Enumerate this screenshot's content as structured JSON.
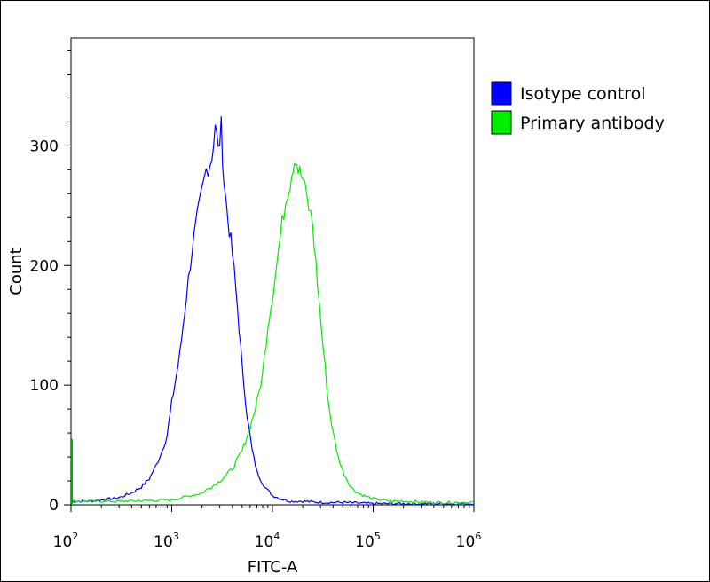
{
  "chart_data": {
    "type": "line",
    "title": "",
    "xlabel": "FITC-A",
    "ylabel": "Count",
    "xscale": "log",
    "xlim": [
      100,
      1000000
    ],
    "ylim": [
      0,
      390
    ],
    "grid": false,
    "legend_position": "top-right",
    "x_ticks": [
      {
        "base": "10",
        "exp": "2"
      },
      {
        "base": "10",
        "exp": "3"
      },
      {
        "base": "10",
        "exp": "4"
      },
      {
        "base": "10",
        "exp": "5"
      },
      {
        "base": "10",
        "exp": "6"
      }
    ],
    "y_ticks": [
      "0",
      "100",
      "200",
      "300"
    ],
    "y_tick_values": [
      0,
      100,
      200,
      300
    ],
    "series": [
      {
        "name": "Isotype control",
        "color": "#0000ff",
        "x": [
          100,
          150,
          200,
          300,
          400,
          500,
          600,
          700,
          800,
          900,
          1000,
          1200,
          1400,
          1600,
          1800,
          2000,
          2200,
          2500,
          2700,
          2900,
          3100,
          3300,
          3600,
          4000,
          4500,
          5000,
          5600,
          6300,
          7000,
          8000,
          9000,
          10000,
          12000,
          15000,
          20000,
          30000,
          50000,
          100000,
          1000000
        ],
        "y": [
          3,
          3,
          4,
          6,
          10,
          15,
          22,
          33,
          45,
          58,
          85,
          125,
          175,
          215,
          240,
          262,
          280,
          290,
          320,
          295,
          315,
          270,
          240,
          210,
          165,
          115,
          75,
          45,
          28,
          18,
          12,
          8,
          5,
          3,
          3,
          2,
          2,
          1,
          1
        ]
      },
      {
        "name": "Primary antibody",
        "color": "#00ee00",
        "x": [
          100,
          300,
          1000,
          2000,
          3000,
          4000,
          5000,
          6000,
          7000,
          8000,
          9000,
          10000,
          11000,
          12000,
          13000,
          14000,
          15000,
          16000,
          17000,
          18000,
          20000,
          22000,
          25000,
          28000,
          32000,
          36000,
          40000,
          45000,
          50000,
          60000,
          70000,
          85000,
          100000,
          150000,
          200000,
          400000,
          1000000
        ],
        "y": [
          3,
          3,
          4,
          10,
          20,
          30,
          45,
          65,
          85,
          110,
          150,
          175,
          200,
          225,
          245,
          262,
          270,
          285,
          292,
          280,
          272,
          255,
          235,
          185,
          130,
          85,
          60,
          40,
          28,
          15,
          10,
          7,
          5,
          3,
          3,
          2,
          2
        ]
      }
    ]
  }
}
